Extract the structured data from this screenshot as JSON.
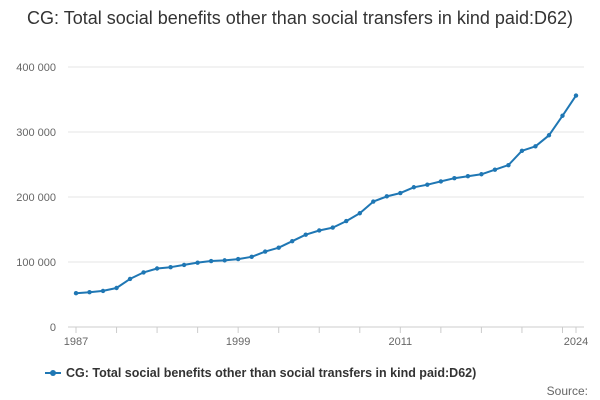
{
  "chart_data": {
    "type": "line",
    "title": "CG: Total social benefits other than social transfers in kind paid:D62)",
    "xlabel": "",
    "ylabel": "",
    "x": [
      1987,
      1988,
      1989,
      1990,
      1991,
      1992,
      1993,
      1994,
      1995,
      1996,
      1997,
      1998,
      1999,
      2000,
      2001,
      2002,
      2003,
      2004,
      2005,
      2006,
      2007,
      2008,
      2009,
      2010,
      2011,
      2012,
      2013,
      2014,
      2015,
      2016,
      2017,
      2018,
      2019,
      2020,
      2021,
      2022,
      2023,
      2024
    ],
    "series": [
      {
        "name": "CG: Total social benefits other than social transfers in kind paid:D62)",
        "color": "#1f77b4",
        "values": [
          52000,
          53500,
          55500,
          60000,
          74000,
          84000,
          90000,
          92000,
          95500,
          99000,
          101500,
          102500,
          104500,
          108000,
          116000,
          122000,
          132000,
          142000,
          148500,
          153000,
          163000,
          175000,
          193000,
          201000,
          206000,
          215000,
          219000,
          224000,
          229000,
          232000,
          235000,
          242000,
          249000,
          271000,
          278000,
          295000,
          325000,
          356000
        ]
      }
    ],
    "xlim": [
      1987,
      2024
    ],
    "ylim": [
      0,
      400000
    ],
    "yticks": [
      0,
      100000,
      200000,
      300000,
      400000
    ],
    "ytick_labels": [
      "0",
      "100 000",
      "200 000",
      "300 000",
      "400 000"
    ],
    "xtick_labels_shown": [
      "1987",
      "1999",
      "2011",
      "2024"
    ],
    "grid": true,
    "legend_position": "bottom-left"
  },
  "legend": {
    "label": "CG: Total social benefits other than social transfers in kind paid:D62)"
  },
  "source_label": "Source:"
}
